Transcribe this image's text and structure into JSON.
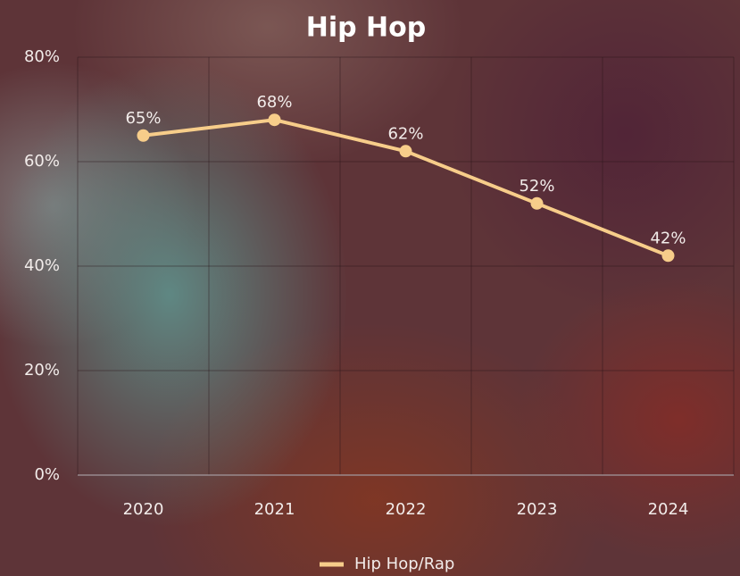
{
  "chart_data": {
    "type": "line",
    "title": "Hip Hop",
    "categories": [
      "2020",
      "2021",
      "2022",
      "2023",
      "2024"
    ],
    "series": [
      {
        "name": "Hip Hop/Rap",
        "color": "#f7cd8a",
        "values": [
          65,
          68,
          62,
          52,
          42
        ],
        "value_labels": [
          "65%",
          "68%",
          "62%",
          "52%",
          "42%"
        ]
      }
    ],
    "ylim": [
      0,
      80
    ],
    "yticks": [
      {
        "value": 0,
        "label": "0%"
      },
      {
        "value": 20,
        "label": "20%"
      },
      {
        "value": 40,
        "label": "40%"
      },
      {
        "value": 60,
        "label": "60%"
      },
      {
        "value": 80,
        "label": "80%"
      }
    ],
    "grid": true,
    "legend": "bottom"
  }
}
